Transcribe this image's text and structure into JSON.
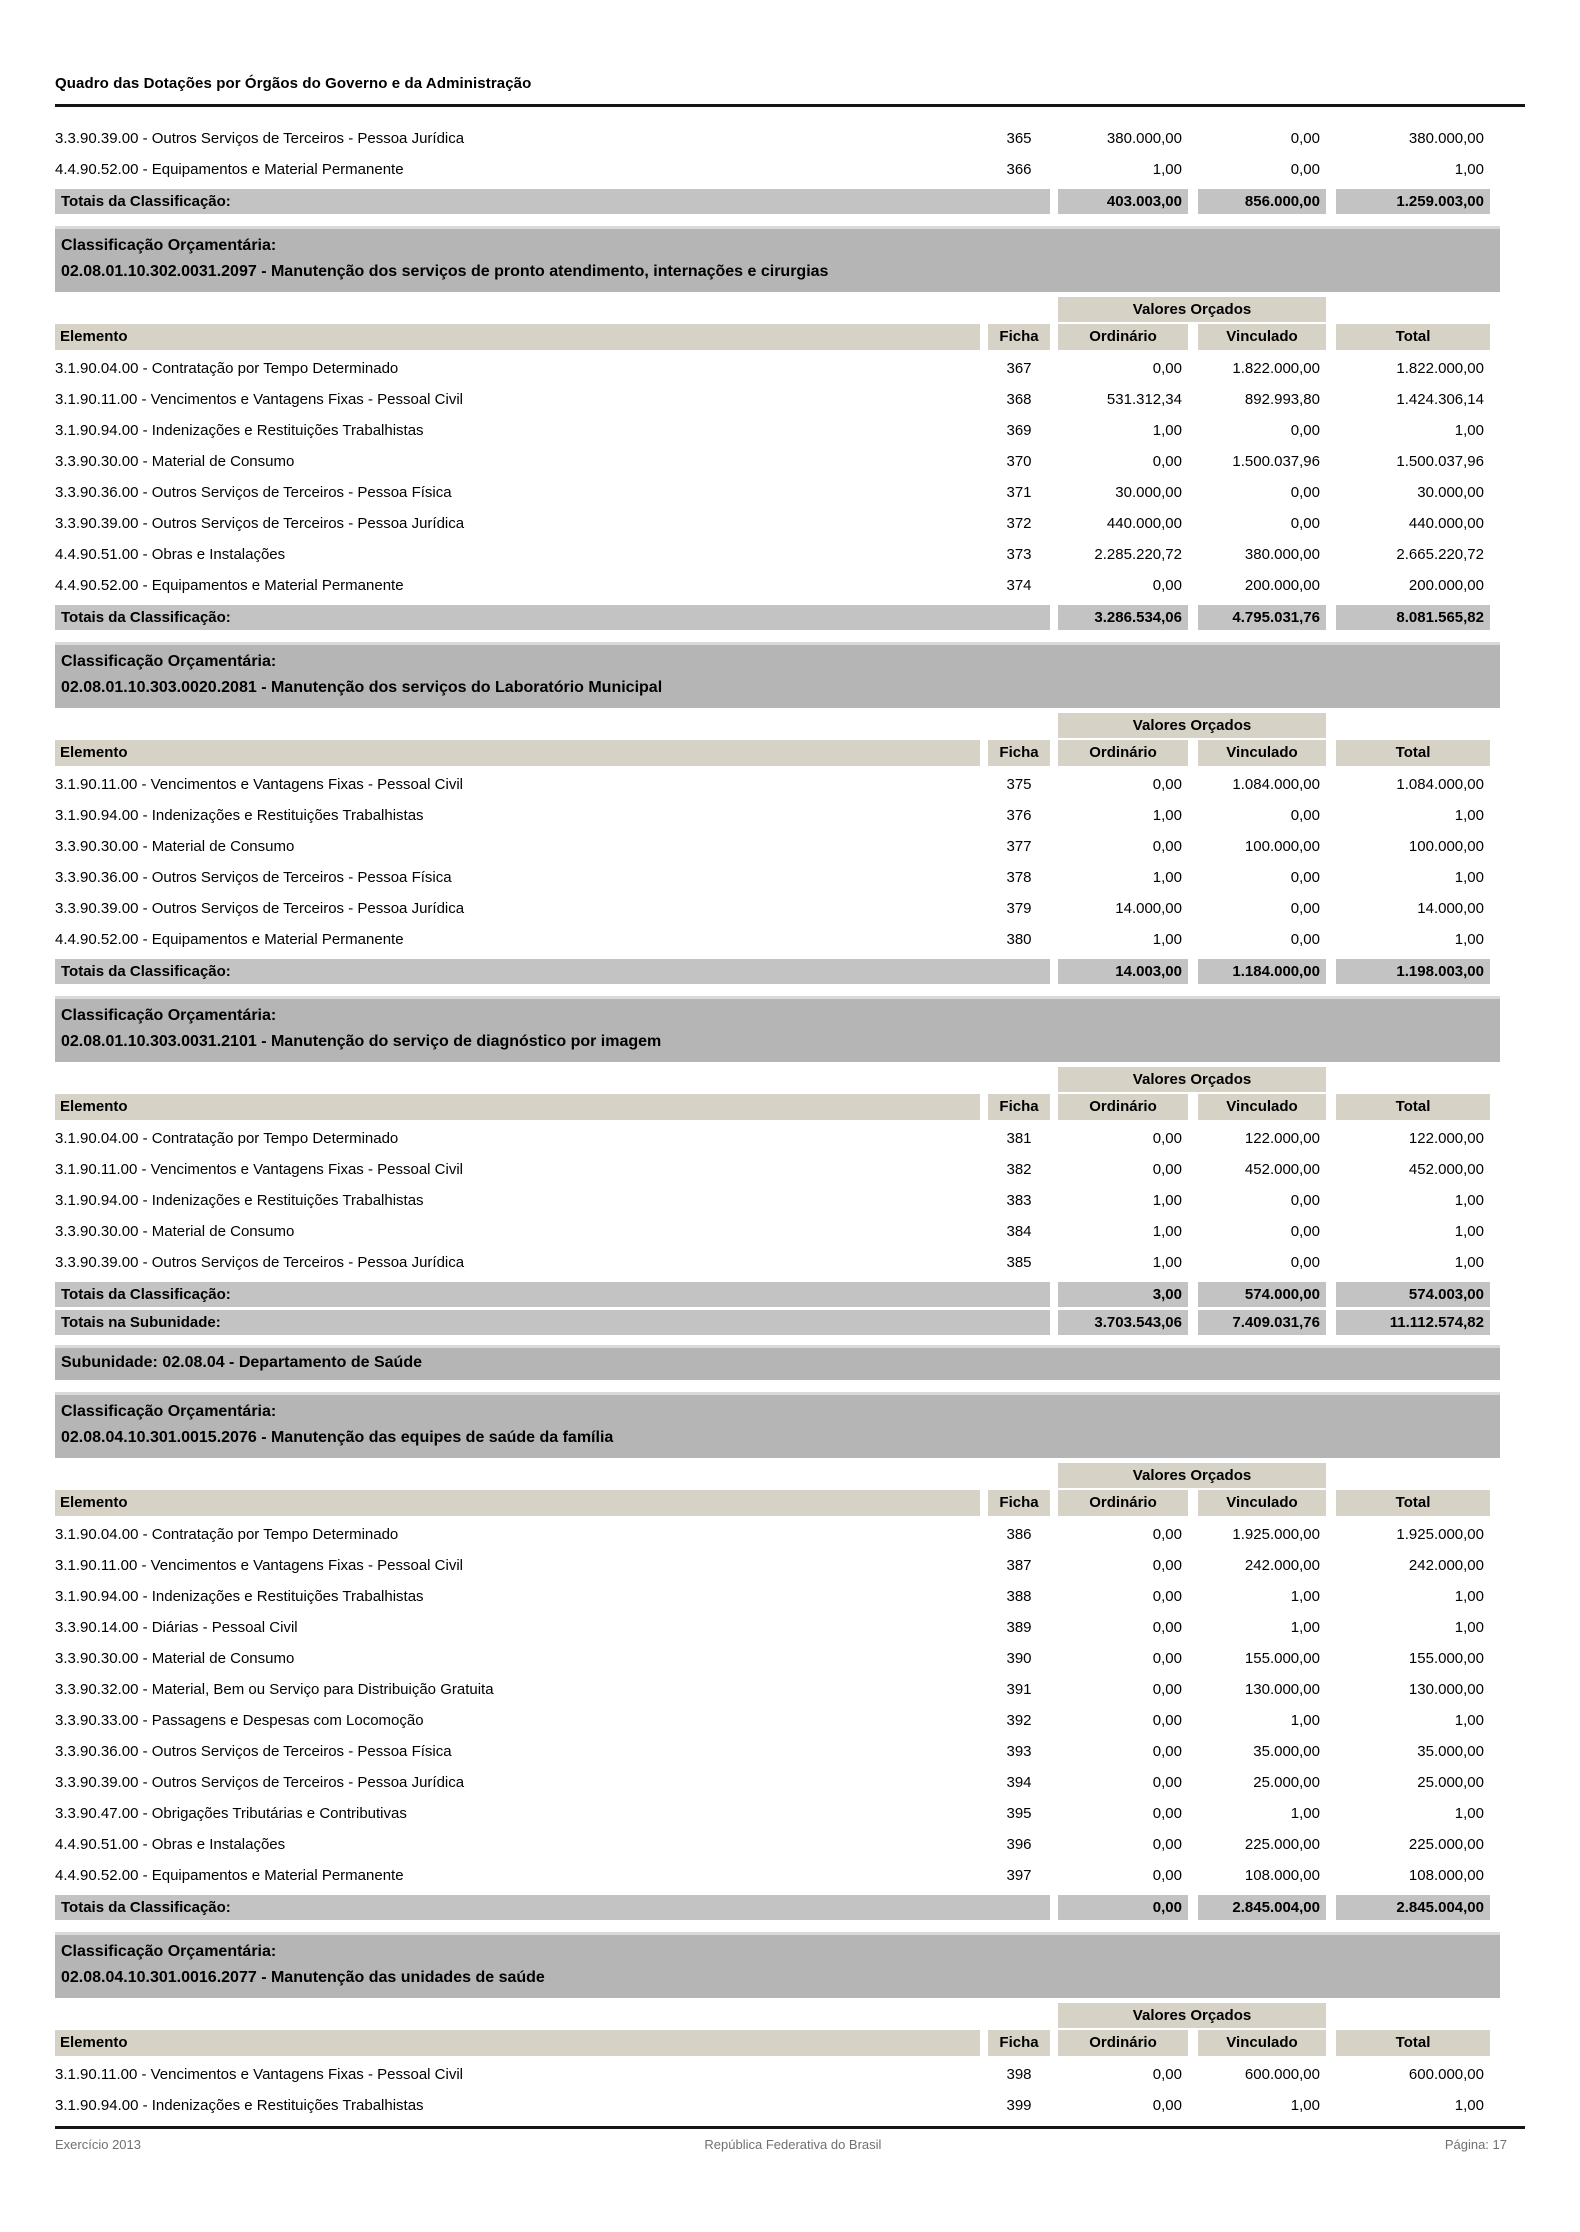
{
  "page": {
    "header_title": "Quadro das Dotações por Órgãos do Governo e da Administração",
    "footer": {
      "left": "Exercício 2013",
      "center": "República Federativa do Brasil",
      "right": "Página: 17"
    }
  },
  "labels": {
    "classificacao_header": "Classificação Orçamentária:",
    "valores_orcados": "Valores Orçados",
    "col_elemento": "Elemento",
    "col_ficha": "Ficha",
    "col_ordinario": "Ordinário",
    "col_vinculado": "Vinculado",
    "col_total": "Total",
    "totais_classificacao": "Totais da Classificação:",
    "totais_subunidade": "Totais na Subunidade:"
  },
  "blocks": [
    {
      "type": "rows",
      "first": true,
      "rows": [
        {
          "elemento": "3.3.90.39.00 - Outros Serviços de Terceiros - Pessoa Jurídica",
          "ficha": "365",
          "ordinario": "380.000,00",
          "vinculado": "0,00",
          "total": "380.000,00"
        },
        {
          "elemento": "4.4.90.52.00 - Equipamentos e Material Permanente",
          "ficha": "366",
          "ordinario": "1,00",
          "vinculado": "0,00",
          "total": "1,00"
        }
      ]
    },
    {
      "type": "totals",
      "label_key": "totais_classificacao",
      "ordinario": "403.003,00",
      "vinculado": "856.000,00",
      "total": "1.259.003,00"
    },
    {
      "type": "section",
      "title": "02.08.01.10.302.0031.2097 - Manutenção dos serviços de pronto atendimento, internações e cirurgias"
    },
    {
      "type": "table_head"
    },
    {
      "type": "rows",
      "rows": [
        {
          "elemento": "3.1.90.04.00 - Contratação por Tempo Determinado",
          "ficha": "367",
          "ordinario": "0,00",
          "vinculado": "1.822.000,00",
          "total": "1.822.000,00"
        },
        {
          "elemento": "3.1.90.11.00 - Vencimentos e Vantagens Fixas - Pessoal Civil",
          "ficha": "368",
          "ordinario": "531.312,34",
          "vinculado": "892.993,80",
          "total": "1.424.306,14"
        },
        {
          "elemento": "3.1.90.94.00 - Indenizações e Restituições Trabalhistas",
          "ficha": "369",
          "ordinario": "1,00",
          "vinculado": "0,00",
          "total": "1,00"
        },
        {
          "elemento": "3.3.90.30.00 - Material de Consumo",
          "ficha": "370",
          "ordinario": "0,00",
          "vinculado": "1.500.037,96",
          "total": "1.500.037,96"
        },
        {
          "elemento": "3.3.90.36.00 - Outros Serviços de Terceiros - Pessoa Física",
          "ficha": "371",
          "ordinario": "30.000,00",
          "vinculado": "0,00",
          "total": "30.000,00"
        },
        {
          "elemento": "3.3.90.39.00 - Outros Serviços de Terceiros - Pessoa Jurídica",
          "ficha": "372",
          "ordinario": "440.000,00",
          "vinculado": "0,00",
          "total": "440.000,00"
        },
        {
          "elemento": "4.4.90.51.00 - Obras e Instalações",
          "ficha": "373",
          "ordinario": "2.285.220,72",
          "vinculado": "380.000,00",
          "total": "2.665.220,72"
        },
        {
          "elemento": "4.4.90.52.00 - Equipamentos e Material Permanente",
          "ficha": "374",
          "ordinario": "0,00",
          "vinculado": "200.000,00",
          "total": "200.000,00"
        }
      ]
    },
    {
      "type": "totals",
      "label_key": "totais_classificacao",
      "ordinario": "3.286.534,06",
      "vinculado": "4.795.031,76",
      "total": "8.081.565,82"
    },
    {
      "type": "section",
      "title": "02.08.01.10.303.0020.2081 - Manutenção dos serviços do Laboratório Municipal"
    },
    {
      "type": "table_head"
    },
    {
      "type": "rows",
      "rows": [
        {
          "elemento": "3.1.90.11.00 - Vencimentos e Vantagens Fixas - Pessoal Civil",
          "ficha": "375",
          "ordinario": "0,00",
          "vinculado": "1.084.000,00",
          "total": "1.084.000,00"
        },
        {
          "elemento": "3.1.90.94.00 - Indenizações e Restituições Trabalhistas",
          "ficha": "376",
          "ordinario": "1,00",
          "vinculado": "0,00",
          "total": "1,00"
        },
        {
          "elemento": "3.3.90.30.00 - Material de Consumo",
          "ficha": "377",
          "ordinario": "0,00",
          "vinculado": "100.000,00",
          "total": "100.000,00"
        },
        {
          "elemento": "3.3.90.36.00 - Outros Serviços de Terceiros - Pessoa Física",
          "ficha": "378",
          "ordinario": "1,00",
          "vinculado": "0,00",
          "total": "1,00"
        },
        {
          "elemento": "3.3.90.39.00 - Outros Serviços de Terceiros - Pessoa Jurídica",
          "ficha": "379",
          "ordinario": "14.000,00",
          "vinculado": "0,00",
          "total": "14.000,00"
        },
        {
          "elemento": "4.4.90.52.00 - Equipamentos e Material Permanente",
          "ficha": "380",
          "ordinario": "1,00",
          "vinculado": "0,00",
          "total": "1,00"
        }
      ]
    },
    {
      "type": "totals",
      "label_key": "totais_classificacao",
      "ordinario": "14.003,00",
      "vinculado": "1.184.000,00",
      "total": "1.198.003,00"
    },
    {
      "type": "section",
      "title": "02.08.01.10.303.0031.2101 - Manutenção do serviço de diagnóstico por imagem"
    },
    {
      "type": "table_head"
    },
    {
      "type": "rows",
      "rows": [
        {
          "elemento": "3.1.90.04.00 - Contratação por Tempo Determinado",
          "ficha": "381",
          "ordinario": "0,00",
          "vinculado": "122.000,00",
          "total": "122.000,00"
        },
        {
          "elemento": "3.1.90.11.00 - Vencimentos e Vantagens Fixas - Pessoal Civil",
          "ficha": "382",
          "ordinario": "0,00",
          "vinculado": "452.000,00",
          "total": "452.000,00"
        },
        {
          "elemento": "3.1.90.94.00 - Indenizações e Restituições Trabalhistas",
          "ficha": "383",
          "ordinario": "1,00",
          "vinculado": "0,00",
          "total": "1,00"
        },
        {
          "elemento": "3.3.90.30.00 - Material de Consumo",
          "ficha": "384",
          "ordinario": "1,00",
          "vinculado": "0,00",
          "total": "1,00"
        },
        {
          "elemento": "3.3.90.39.00 - Outros Serviços de Terceiros - Pessoa Jurídica",
          "ficha": "385",
          "ordinario": "1,00",
          "vinculado": "0,00",
          "total": "1,00"
        }
      ]
    },
    {
      "type": "totals",
      "label_key": "totais_classificacao",
      "ordinario": "3,00",
      "vinculado": "574.000,00",
      "total": "574.003,00"
    },
    {
      "type": "totals",
      "label_key": "totais_subunidade",
      "tight": true,
      "ordinario": "3.703.543,06",
      "vinculado": "7.409.031,76",
      "total": "11.112.574,82"
    },
    {
      "type": "subunit",
      "text": "Subunidade: 02.08.04 - Departamento de Saúde"
    },
    {
      "type": "section",
      "title": "02.08.04.10.301.0015.2076 - Manutenção das equipes de saúde da família"
    },
    {
      "type": "table_head"
    },
    {
      "type": "rows",
      "rows": [
        {
          "elemento": "3.1.90.04.00 - Contratação por Tempo Determinado",
          "ficha": "386",
          "ordinario": "0,00",
          "vinculado": "1.925.000,00",
          "total": "1.925.000,00"
        },
        {
          "elemento": "3.1.90.11.00 - Vencimentos e Vantagens Fixas - Pessoal Civil",
          "ficha": "387",
          "ordinario": "0,00",
          "vinculado": "242.000,00",
          "total": "242.000,00"
        },
        {
          "elemento": "3.1.90.94.00 - Indenizações e Restituições Trabalhistas",
          "ficha": "388",
          "ordinario": "0,00",
          "vinculado": "1,00",
          "total": "1,00"
        },
        {
          "elemento": "3.3.90.14.00 - Diárias - Pessoal Civil",
          "ficha": "389",
          "ordinario": "0,00",
          "vinculado": "1,00",
          "total": "1,00"
        },
        {
          "elemento": "3.3.90.30.00 - Material de Consumo",
          "ficha": "390",
          "ordinario": "0,00",
          "vinculado": "155.000,00",
          "total": "155.000,00"
        },
        {
          "elemento": "3.3.90.32.00 - Material, Bem ou Serviço para Distribuição Gratuita",
          "ficha": "391",
          "ordinario": "0,00",
          "vinculado": "130.000,00",
          "total": "130.000,00"
        },
        {
          "elemento": "3.3.90.33.00 - Passagens e Despesas com Locomoção",
          "ficha": "392",
          "ordinario": "0,00",
          "vinculado": "1,00",
          "total": "1,00"
        },
        {
          "elemento": "3.3.90.36.00 - Outros Serviços de Terceiros - Pessoa Física",
          "ficha": "393",
          "ordinario": "0,00",
          "vinculado": "35.000,00",
          "total": "35.000,00"
        },
        {
          "elemento": "3.3.90.39.00 - Outros Serviços de Terceiros - Pessoa Jurídica",
          "ficha": "394",
          "ordinario": "0,00",
          "vinculado": "25.000,00",
          "total": "25.000,00"
        },
        {
          "elemento": "3.3.90.47.00 - Obrigações Tributárias e Contributivas",
          "ficha": "395",
          "ordinario": "0,00",
          "vinculado": "1,00",
          "total": "1,00"
        },
        {
          "elemento": "4.4.90.51.00 - Obras e Instalações",
          "ficha": "396",
          "ordinario": "0,00",
          "vinculado": "225.000,00",
          "total": "225.000,00"
        },
        {
          "elemento": "4.4.90.52.00 - Equipamentos e Material Permanente",
          "ficha": "397",
          "ordinario": "0,00",
          "vinculado": "108.000,00",
          "total": "108.000,00"
        }
      ]
    },
    {
      "type": "totals",
      "label_key": "totais_classificacao",
      "ordinario": "0,00",
      "vinculado": "2.845.004,00",
      "total": "2.845.004,00"
    },
    {
      "type": "section",
      "title": "02.08.04.10.301.0016.2077 - Manutenção das unidades de saúde"
    },
    {
      "type": "table_head"
    },
    {
      "type": "rows",
      "rows": [
        {
          "elemento": "3.1.90.11.00 - Vencimentos e Vantagens Fixas - Pessoal Civil",
          "ficha": "398",
          "ordinario": "0,00",
          "vinculado": "600.000,00",
          "total": "600.000,00"
        },
        {
          "elemento": "3.1.90.94.00 - Indenizações e Restituições Trabalhistas",
          "ficha": "399",
          "ordinario": "0,00",
          "vinculado": "1,00",
          "total": "1,00"
        }
      ]
    }
  ]
}
